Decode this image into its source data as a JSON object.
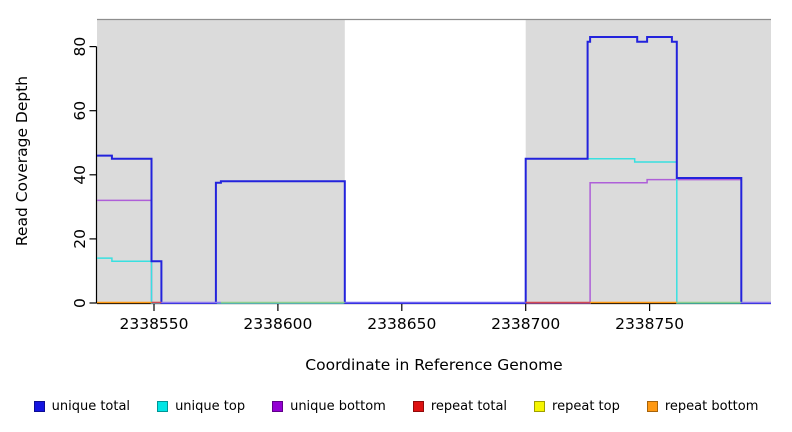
{
  "chart_data": {
    "type": "line",
    "step": true,
    "title": "",
    "xlabel": "Coordinate in Reference Genome",
    "ylabel": "Read Coverage Depth",
    "xlim": [
      2338527,
      2338799
    ],
    "ylim": [
      0,
      88.6
    ],
    "x_ticks": [
      2338550,
      2338600,
      2338650,
      2338700,
      2338750
    ],
    "y_ticks": [
      0,
      20,
      40,
      60,
      80
    ],
    "grid": false,
    "legend_position": "bottom",
    "plot_background": "#ffffff",
    "shading": {
      "color": "#DBDBDB",
      "regions": [
        [
          2338527,
          2338627
        ],
        [
          2338700,
          2338799
        ]
      ]
    },
    "series": [
      {
        "name": "unique total",
        "color": "#2323DC",
        "width": 2,
        "points": [
          [
            2338527,
            46
          ],
          [
            2338533,
            45
          ],
          [
            2338549,
            13
          ],
          [
            2338553,
            0
          ],
          [
            2338575,
            37.5
          ],
          [
            2338577,
            38
          ],
          [
            2338627,
            0
          ],
          [
            2338700,
            45
          ],
          [
            2338725,
            81.5
          ],
          [
            2338726,
            83
          ],
          [
            2338745,
            81.5
          ],
          [
            2338749,
            83
          ],
          [
            2338759,
            81.5
          ],
          [
            2338761,
            39
          ],
          [
            2338787,
            0
          ],
          [
            2338799,
            0
          ]
        ]
      },
      {
        "name": "unique top",
        "color": "#38E0E0",
        "width": 1.5,
        "points": [
          [
            2338527,
            14
          ],
          [
            2338533,
            13
          ],
          [
            2338549,
            0
          ],
          [
            2338700,
            45
          ],
          [
            2338744,
            44
          ],
          [
            2338761,
            0
          ],
          [
            2338799,
            0
          ]
        ]
      },
      {
        "name": "unique bottom",
        "color": "#AE5FD8",
        "width": 1.5,
        "points": [
          [
            2338527,
            32
          ],
          [
            2338549,
            0
          ],
          [
            2338726,
            37.5
          ],
          [
            2338749,
            38.5
          ],
          [
            2338787,
            0
          ],
          [
            2338799,
            0
          ]
        ]
      },
      {
        "name": "repeat total",
        "color": "#D42020",
        "width": 1.5,
        "points": [
          [
            2338527,
            0
          ],
          [
            2338799,
            0
          ]
        ]
      },
      {
        "name": "repeat top",
        "color": "#EDED00",
        "width": 1.5,
        "points": [
          [
            2338527,
            0
          ],
          [
            2338799,
            0
          ]
        ]
      },
      {
        "name": "repeat bottom",
        "color": "#FF9912",
        "width": 1.5,
        "points": [
          [
            2338527,
            0
          ],
          [
            2338799,
            0
          ]
        ]
      }
    ],
    "baseline_segments": [
      [
        2338527,
        2338549,
        "#FF9912"
      ],
      [
        2338549,
        2338553,
        "#D24B54"
      ],
      [
        2338553,
        2338577,
        "#8F7BEE"
      ],
      [
        2338577,
        2338627,
        "#8FCF8F"
      ],
      [
        2338627,
        2338700,
        "#6F63F0"
      ],
      [
        2338700,
        2338726,
        "#D24B54"
      ],
      [
        2338726,
        2338761,
        "#FF9912"
      ],
      [
        2338761,
        2338787,
        "#8FCF8F"
      ],
      [
        2338787,
        2338799,
        "#8F7BEE"
      ]
    ]
  },
  "legend": {
    "items": [
      {
        "label": "unique total",
        "color": "#1414E0"
      },
      {
        "label": "unique top",
        "color": "#00E5E5"
      },
      {
        "label": "unique bottom",
        "color": "#9400D3"
      },
      {
        "label": "repeat total",
        "color": "#DD1111"
      },
      {
        "label": "repeat top",
        "color": "#F5F500"
      },
      {
        "label": "repeat bottom",
        "color": "#FF9912"
      }
    ]
  },
  "axes": {
    "tick_color": "#000000",
    "axis_color": "#000000",
    "top_border_color": "#8E8E8E"
  }
}
